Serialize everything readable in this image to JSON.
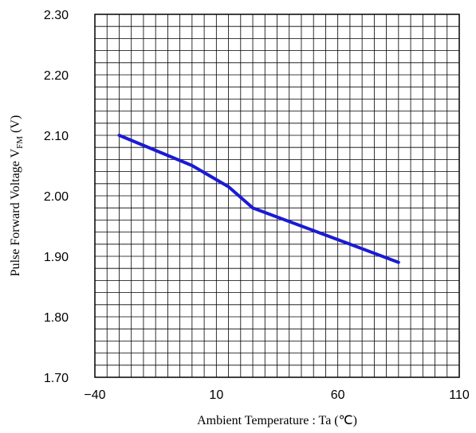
{
  "chart_data": {
    "type": "line",
    "title": "",
    "xlabel": "Ambient Temperature : Ta (℃)",
    "ylabel": {
      "prefix": "Pulse Forward Voltage V",
      "subscript": "FM",
      "suffix": " (V)"
    },
    "xlim": [
      -40,
      110
    ],
    "ylim": [
      1.7,
      2.3
    ],
    "x_ticks": [
      -40,
      10,
      60,
      110
    ],
    "x_tick_labels": [
      "−40",
      "10",
      "60",
      "110"
    ],
    "y_ticks": [
      1.7,
      1.8,
      1.9,
      2.0,
      2.1,
      2.2,
      2.3
    ],
    "y_tick_labels": [
      "1.70",
      "1.80",
      "1.90",
      "2.00",
      "2.10",
      "2.20",
      "2.30"
    ],
    "x_minor_step": 5,
    "y_minor_step": 0.02,
    "grid": true,
    "series": [
      {
        "color": "#1a1ad6",
        "points": [
          {
            "x": -30,
            "y": 2.1
          },
          {
            "x": 0,
            "y": 2.05
          },
          {
            "x": 15,
            "y": 2.015
          },
          {
            "x": 25,
            "y": 1.98
          },
          {
            "x": 45,
            "y": 1.95
          },
          {
            "x": 65,
            "y": 1.92
          },
          {
            "x": 85,
            "y": 1.89
          }
        ]
      }
    ]
  }
}
